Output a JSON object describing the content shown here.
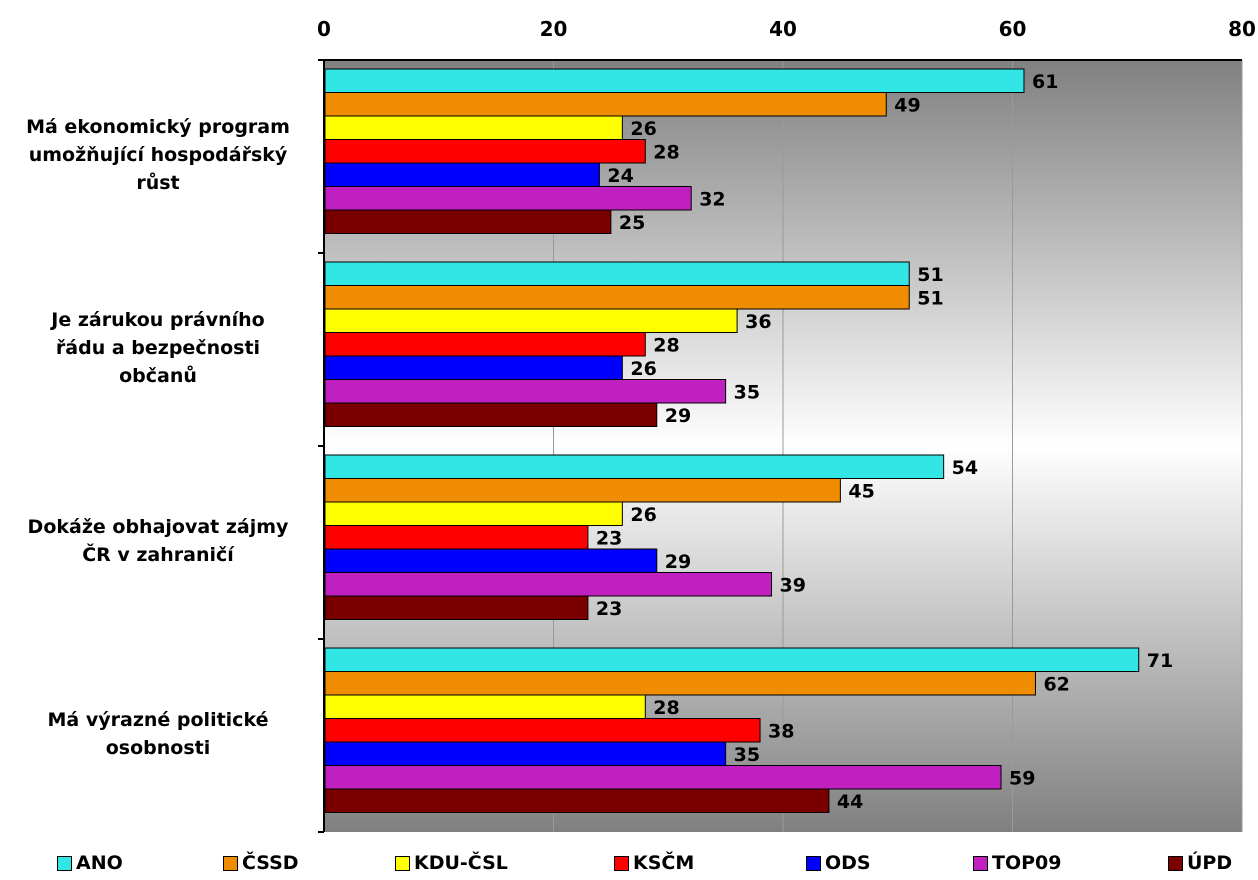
{
  "chart_data": {
    "type": "bar",
    "orientation": "horizontal",
    "xlim": [
      0,
      80
    ],
    "x_ticks": [
      0,
      20,
      40,
      60,
      80
    ],
    "x_axis_position": "top",
    "grid": true,
    "legend_position": "bottom",
    "categories": [
      "Má ekonomický program umožňující hospodářský růst",
      "Je zárukou právního řádu a bezpečnosti občanů",
      "Dokáže obhajovat zájmy ČR v zahraničí",
      "Má výrazné politické osobnosti"
    ],
    "category_lines": [
      [
        "Má ekonomický program",
        "umožňující hospodářský",
        "růst"
      ],
      [
        "Je zárukou právního",
        "řádu a bezpečnosti",
        "občanů"
      ],
      [
        "Dokáže obhajovat zájmy",
        "ČR v zahraničí"
      ],
      [
        "Má výrazné politické",
        "osobnosti"
      ]
    ],
    "series": [
      {
        "name": "ANO",
        "color": "#33e6e6",
        "values": [
          61,
          51,
          54,
          71
        ]
      },
      {
        "name": "ČSSD",
        "color": "#f08c00",
        "values": [
          49,
          51,
          45,
          62
        ]
      },
      {
        "name": "KDU-ČSL",
        "color": "#ffff00",
        "values": [
          26,
          36,
          26,
          28
        ]
      },
      {
        "name": "KSČM",
        "color": "#ff0000",
        "values": [
          28,
          28,
          23,
          38
        ]
      },
      {
        "name": "ODS",
        "color": "#0000ff",
        "values": [
          24,
          26,
          29,
          35
        ]
      },
      {
        "name": "TOP09",
        "color": "#c020c0",
        "values": [
          32,
          35,
          39,
          59
        ]
      },
      {
        "name": "ÚPD",
        "color": "#7a0000",
        "values": [
          25,
          29,
          23,
          44
        ]
      }
    ]
  }
}
